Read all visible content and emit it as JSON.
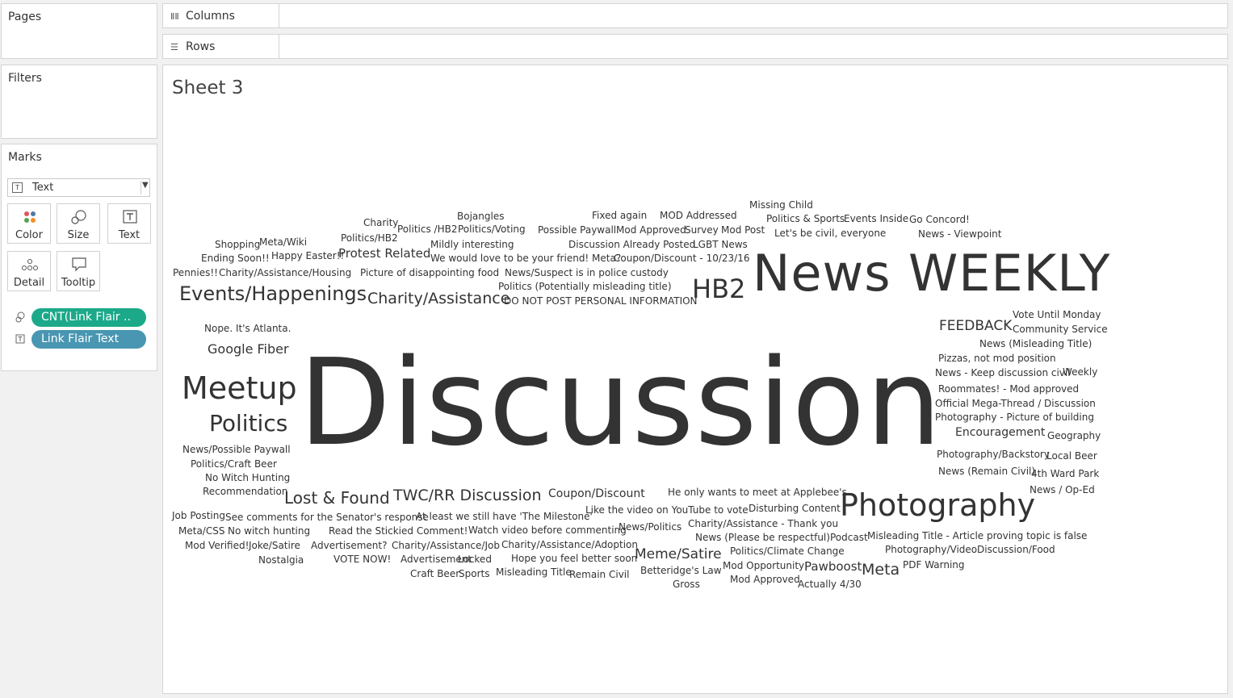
{
  "shelves": {
    "columns_label": "Columns",
    "rows_label": "Rows"
  },
  "panes": {
    "pages_title": "Pages",
    "filters_title": "Filters",
    "marks_title": "Marks"
  },
  "marks": {
    "mark_type": "Text",
    "cards": [
      "Color",
      "Size",
      "Text",
      "Detail",
      "Tooltip"
    ],
    "pills": [
      {
        "label": "CNT(Link Flair ..",
        "icon": "size-icon",
        "color": "#1ba989"
      },
      {
        "label": "Link Flair Text",
        "icon": "text-icon",
        "color": "#4996b2"
      }
    ]
  },
  "sheet": {
    "title": "Sheet 3"
  },
  "chart_data": {
    "type": "word cloud",
    "words": [
      "Discussion",
      "News",
      "WEEKLY",
      "Photography",
      "Meetup",
      "Politics",
      "HB2",
      "Events/Happenings",
      "Charity/Assistance",
      "Lost & Found",
      "TWC/RR Discussion",
      "Meme/Satire",
      "Meta",
      "FEEDBACK",
      "Google Fiber",
      "Protest Related",
      "Encouragement",
      "Coupon/Discount",
      "Pawboost",
      "Charity",
      "Bojangles",
      "Fixed again",
      "MOD Addressed",
      "Missing Child",
      "Politics /HB2",
      "Politics/Voting",
      "Possible Paywall",
      "Mod Approved",
      "Survey",
      "Mod Post",
      "Politics & Sports",
      "Events Inside",
      "Go Concord!",
      "Shopping",
      "Meta/Wiki",
      "Politics/HB2",
      "Mildly interesting",
      "Discussion Already Posted",
      "LGBT News",
      "Let's be civil, everyone",
      "News - Viewpoint",
      "Ending Soon!!",
      "Happy Easter!!",
      "We would love to be your friend! Meta?",
      "Coupon/Discount - 10/23/16",
      "Pennies!!",
      "Charity/Assistance/Housing",
      "Picture of disappointing food",
      "News/Suspect is in police custody",
      "Politics (Potentially misleading title)",
      "DO NOT POST PERSONAL INFORMATION",
      "Nope.  It's Atlanta.",
      "Vote Until Monday",
      "Community Service",
      "News (Misleading Title)",
      "Pizzas, not mod position",
      "News - Keep discussion civil",
      "Weekly",
      "Roommates! - Mod approved",
      "Official Mega-Thread / Discussion",
      "Photography - Picture of building",
      "Geography",
      "Photography/Backstory",
      "Local Beer",
      "News (Remain Civil)",
      "4th Ward Park",
      "News / Op-Ed",
      "News/Possible Paywall",
      "Politics/Craft Beer",
      "No Witch Hunting",
      "Recommendation",
      "He only wants to meet at Applebee's",
      "Job Posting",
      "See comments for the Senator's response",
      "At least we still have 'The Milestone'",
      "Like the video on YouTube to vote",
      "Disturbing Content",
      "Meta/CSS",
      "No witch hunting",
      "Read the Stickied Comment!",
      "Watch video before commenting",
      "News/Politics",
      "Charity/Assistance - Thank you",
      "News (Please be respectful)",
      "Podcast",
      "Misleading Title - Article proving topic is false",
      "Mod Verified!",
      "Joke/Satire",
      "Advertisement?",
      "Charity/Assistance/Job",
      "Charity/Assistance/Adoption",
      "Politics/Climate Change",
      "Photography/Video",
      "Discussion/Food",
      "Nostalgia",
      "VOTE NOW!",
      "Advertisement",
      "Locked",
      "Hope you feel better soon",
      "Mod Opportunity",
      "PDF Warning",
      "Craft Beer",
      "Sports",
      "Misleading Title",
      "Remain Civil",
      "Betteridge's Law",
      "Mod Approved",
      "Actually 4/30",
      "Gross"
    ]
  }
}
